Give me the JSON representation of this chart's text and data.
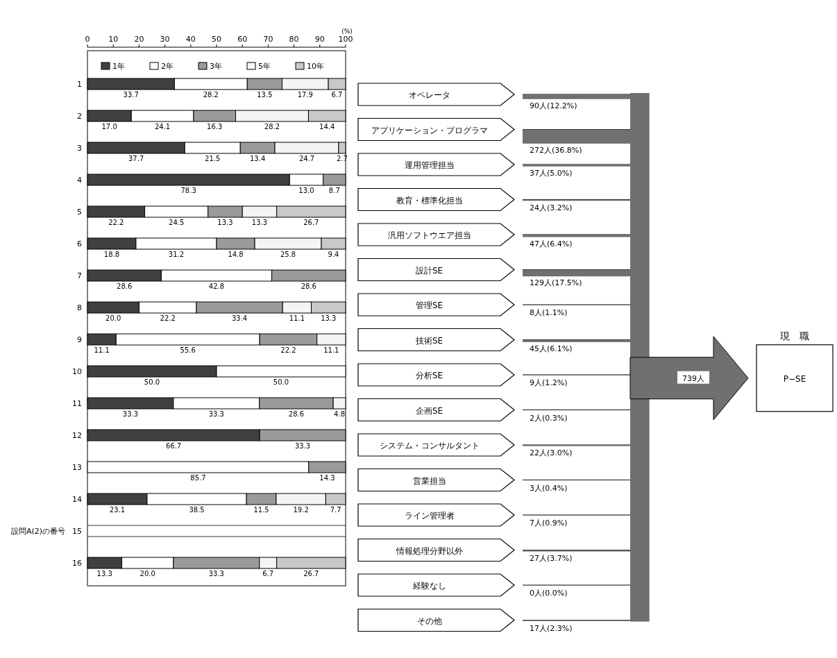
{
  "chart_data": [
    {
      "type": "bar",
      "orientation": "horizontal",
      "stacked": true,
      "xlabel": "(%)",
      "ylabel": "設問A(2)の番号",
      "categories": [
        "1",
        "2",
        "3",
        "4",
        "5",
        "6",
        "7",
        "8",
        "9",
        "10",
        "11",
        "12",
        "13",
        "14",
        "15",
        "16"
      ],
      "xlim": [
        0,
        100
      ],
      "xticks": [
        0,
        10,
        20,
        30,
        40,
        50,
        60,
        70,
        80,
        90,
        100
      ],
      "legend": "top",
      "series": [
        {
          "name": "1年",
          "color": "#404040",
          "values": [
            33.7,
            17.0,
            37.7,
            78.3,
            22.2,
            18.8,
            28.6,
            20.0,
            11.1,
            50.0,
            33.3,
            66.7,
            null,
            23.1,
            null,
            13.3
          ],
          "value_labels": [
            "33.7",
            "17.0",
            "37.7",
            "78.3",
            "22.2",
            "18.8",
            "28.6",
            "20.0",
            "11.1",
            "50.0",
            "33.3",
            "66.7",
            null,
            "23.1",
            null,
            "13.3"
          ]
        },
        {
          "name": "2年",
          "color": "#ffffff",
          "values": [
            28.2,
            24.1,
            21.5,
            13.0,
            24.5,
            31.2,
            42.8,
            22.2,
            55.6,
            50.0,
            33.3,
            null,
            85.7,
            38.5,
            null,
            20.0
          ],
          "value_labels": [
            "28.2",
            "24.1",
            "21.5",
            "13.0",
            "24.5",
            "31.2",
            "42.8",
            "22.2",
            "55.6",
            "50.0",
            "33.3",
            null,
            "85.7",
            "38.5",
            null,
            "20.0"
          ]
        },
        {
          "name": "3年",
          "color": "#9a9a9a",
          "values": [
            13.5,
            16.3,
            13.4,
            8.7,
            13.3,
            14.8,
            28.6,
            33.4,
            22.2,
            null,
            28.6,
            33.3,
            14.3,
            11.5,
            null,
            33.3
          ],
          "value_labels": [
            "13.5",
            "16.3",
            "13.4",
            "8.7",
            "13.3",
            "14.8",
            "28.6",
            "33.4",
            "22.2",
            null,
            "28.6",
            "33.3",
            "14.3",
            "11.5",
            null,
            "33.3"
          ]
        },
        {
          "name": "5年",
          "color": "#f4f4f4",
          "values": [
            17.9,
            28.2,
            24.7,
            null,
            13.3,
            25.8,
            null,
            11.1,
            11.1,
            null,
            4.8,
            null,
            null,
            19.2,
            null,
            6.7
          ],
          "value_labels": [
            "17.9",
            "28.2",
            "24.7",
            null,
            "13.3",
            "25.8",
            null,
            "11.1",
            "11.1",
            null,
            "4.8",
            null,
            null,
            "19.2",
            null,
            "6.7"
          ]
        },
        {
          "name": "10年",
          "color": "#c8c8c8",
          "values": [
            6.7,
            14.4,
            2.7,
            null,
            26.7,
            9.4,
            null,
            13.3,
            null,
            null,
            null,
            null,
            null,
            7.7,
            null,
            26.7
          ],
          "value_labels": [
            "6.7",
            "14.4",
            "2.7",
            null,
            "26.7",
            "9.4",
            null,
            "13.3",
            null,
            null,
            null,
            null,
            null,
            "7.7",
            null,
            "26.7"
          ]
        }
      ]
    },
    {
      "type": "other",
      "categories": [
        "オペレータ",
        "アプリケーション・プログラマ",
        "運用管理担当",
        "教育・標準化担当",
        "汎用ソフトウエア担当",
        "設計SE",
        "管理SE",
        "技術SE",
        "分析SE",
        "企画SE",
        "システム・コンサルタント",
        "営業担当",
        "ライン管理者",
        "情報処理分野以外",
        "経験なし",
        "その他"
      ],
      "values": [
        90,
        272,
        37,
        24,
        47,
        129,
        8,
        45,
        9,
        2,
        22,
        3,
        7,
        27,
        0,
        17
      ],
      "value_labels": [
        "90人(12.2%)",
        "272人(36.8%)",
        "37人(5.0%)",
        "24人(3.2%)",
        "47人(6.4%)",
        "129人(17.5%)",
        "8人(1.1%)",
        "45人(6.1%)",
        "9人(1.2%)",
        "2人(0.3%)",
        "22人(3.0%)",
        "3人(0.4%)",
        "7人(0.9%)",
        "27人(3.7%)",
        "0人(0.0%)",
        "17人(2.3%)"
      ],
      "color": "#707070",
      "annotations": [
        "739人",
        "現　職",
        "P−SE"
      ]
    }
  ]
}
